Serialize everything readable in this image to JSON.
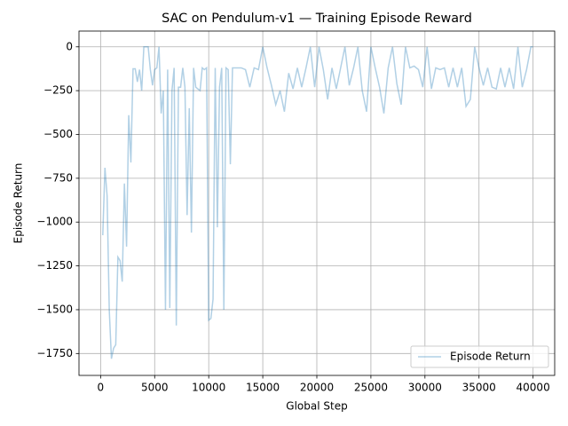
{
  "chart_data": {
    "type": "line",
    "title": "SAC on Pendulum-v1 — Training Episode Reward",
    "xlabel": "Global Step",
    "ylabel": "Episode Return",
    "x": [
      200,
      400,
      600,
      800,
      1000,
      1200,
      1400,
      1600,
      1800,
      2000,
      2200,
      2400,
      2600,
      2800,
      3000,
      3200,
      3400,
      3600,
      3800,
      4000,
      4200,
      4400,
      4600,
      4800,
      5000,
      5200,
      5400,
      5600,
      5800,
      6000,
      6200,
      6400,
      6600,
      6800,
      7000,
      7200,
      7400,
      7600,
      7800,
      8000,
      8200,
      8400,
      8600,
      8800,
      9000,
      9200,
      9400,
      9600,
      9800,
      10000,
      10200,
      10400,
      10600,
      10800,
      11000,
      11200,
      11400,
      11600,
      11800,
      12000,
      12200,
      12600,
      13000,
      13400,
      13800,
      14200,
      14600,
      15000,
      15400,
      15800,
      16200,
      16600,
      17000,
      17400,
      17800,
      18200,
      18600,
      19000,
      19400,
      19800,
      20200,
      20600,
      21000,
      21400,
      21800,
      22200,
      22600,
      23000,
      23400,
      23800,
      24200,
      24600,
      25000,
      25400,
      25800,
      26200,
      26600,
      27000,
      27400,
      27800,
      28200,
      28600,
      29000,
      29400,
      29800,
      30200,
      30600,
      31000,
      31400,
      31800,
      32200,
      32600,
      33000,
      33400,
      33800,
      34200,
      34600,
      35000,
      35400,
      35800,
      36200,
      36600,
      37000,
      37400,
      37800,
      38200,
      38600,
      39000,
      39400,
      39800,
      40000
    ],
    "series": [
      {
        "name": "Episode Return",
        "color": "#1f77b4",
        "values": [
          -1075,
          -690,
          -850,
          -1500,
          -1780,
          -1720,
          -1700,
          -1200,
          -1220,
          -1340,
          -780,
          -1140,
          -390,
          -660,
          -125,
          -125,
          -200,
          -130,
          -250,
          0,
          0,
          0,
          -130,
          -220,
          -130,
          -120,
          0,
          -380,
          -250,
          -1500,
          -130,
          -1490,
          -250,
          -120,
          -1590,
          -230,
          -230,
          -120,
          -230,
          -960,
          -350,
          -1060,
          -120,
          -230,
          -240,
          -250,
          -120,
          -130,
          -120,
          -1560,
          -1550,
          -1440,
          -120,
          -1030,
          -230,
          -120,
          -1500,
          -120,
          -130,
          -670,
          -120,
          -120,
          -120,
          -130,
          -230,
          -120,
          -130,
          0,
          -120,
          -220,
          -330,
          -250,
          -370,
          -150,
          -240,
          -120,
          -230,
          -120,
          0,
          -230,
          0,
          -130,
          -300,
          -120,
          -240,
          -120,
          0,
          -220,
          -120,
          0,
          -250,
          -370,
          0,
          -120,
          -230,
          -380,
          -120,
          0,
          -210,
          -330,
          0,
          -120,
          -110,
          -130,
          -230,
          0,
          -240,
          -120,
          -130,
          -120,
          -230,
          -120,
          -230,
          -120,
          -340,
          -300,
          0,
          -120,
          -220,
          -120,
          -230,
          -240,
          -120,
          -230,
          -120,
          -240,
          0,
          -230,
          -130,
          0,
          0
        ]
      }
    ],
    "xlim": [
      -2000,
      42000
    ],
    "ylim": [
      -1875,
      90
    ],
    "xticks": [
      0,
      5000,
      10000,
      15000,
      20000,
      25000,
      30000,
      35000,
      40000
    ],
    "yticks": [
      {
        "value": -1750,
        "label": "−1750"
      },
      {
        "value": -1500,
        "label": "−1500"
      },
      {
        "value": -1250,
        "label": "−1250"
      },
      {
        "value": -1000,
        "label": "−1000"
      },
      {
        "value": -750,
        "label": "−750"
      },
      {
        "value": -500,
        "label": "−500"
      },
      {
        "value": -250,
        "label": "−250"
      },
      0
    ],
    "grid": true,
    "legend": "lower right"
  }
}
